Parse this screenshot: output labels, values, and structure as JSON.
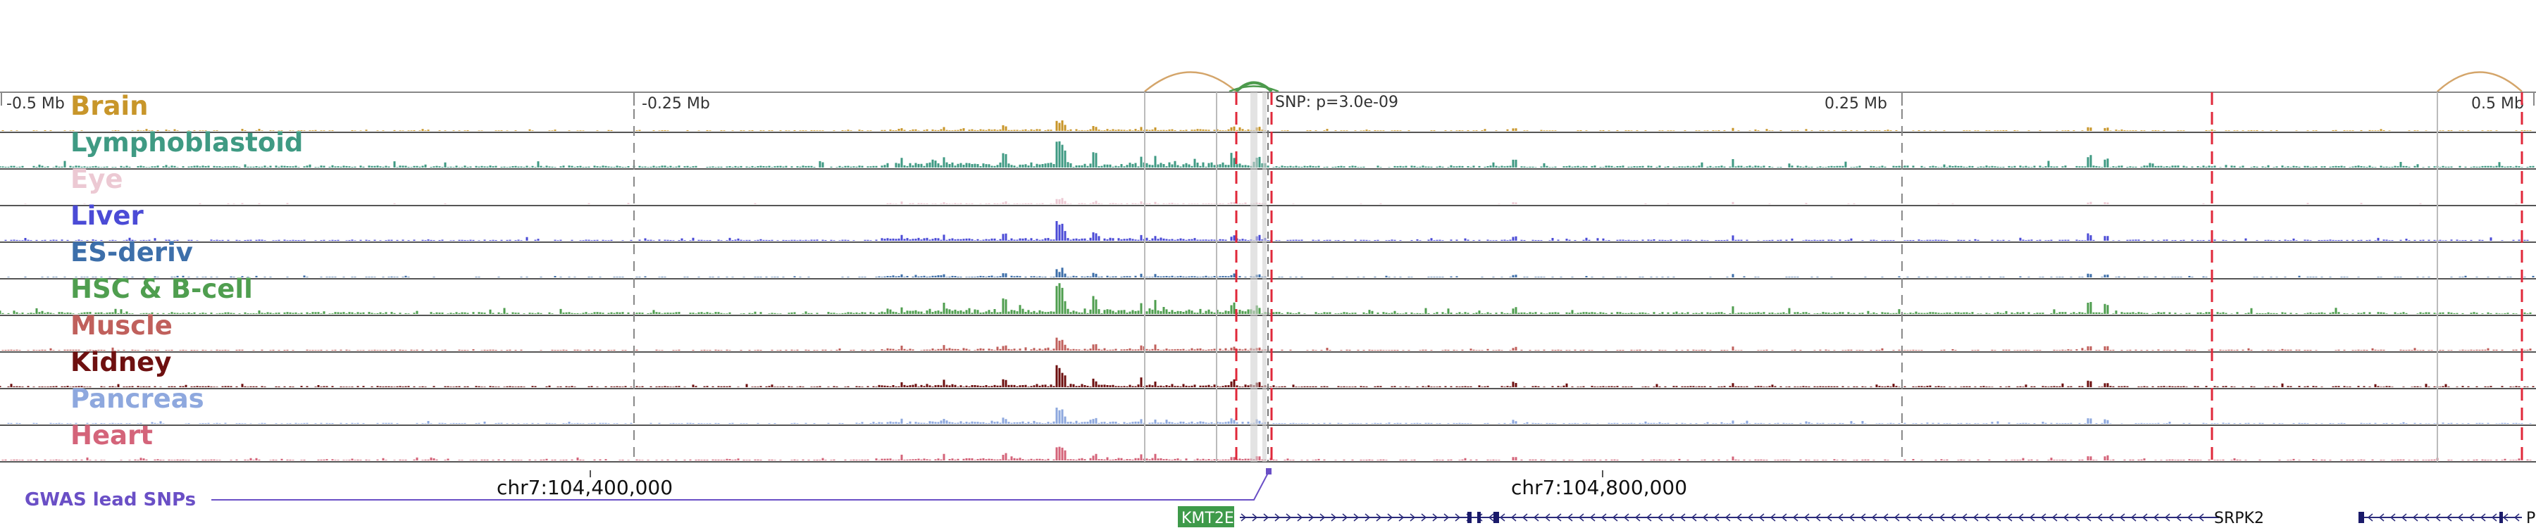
{
  "ruler": {
    "labels": [
      "-0.5 Mb",
      "-0.25 Mb",
      "0.25 Mb",
      "0.5 Mb"
    ]
  },
  "snp_label": "SNP: p=3.0e-09",
  "tracks": [
    {
      "name": "Brain",
      "color": "#c8962a"
    },
    {
      "name": "Lymphoblastoid",
      "color": "#3f9a83"
    },
    {
      "name": "Eye",
      "color": "#ecc9d3"
    },
    {
      "name": "Liver",
      "color": "#4b4bd6"
    },
    {
      "name": "ES-deriv",
      "color": "#3d6faa"
    },
    {
      "name": "HSC & B-cell",
      "color": "#4f9e4f"
    },
    {
      "name": "Muscle",
      "color": "#c0605c"
    },
    {
      "name": "Kidney",
      "color": "#6e1010"
    },
    {
      "name": "Pancreas",
      "color": "#8ea8de"
    },
    {
      "name": "Heart",
      "color": "#d4647a"
    }
  ],
  "coordinates": [
    "chr7:104,400,000",
    "chr7:104,800,000"
  ],
  "gwas_label": "GWAS lead SNPs",
  "genes": {
    "kmt2e": "KMT2E",
    "srpk2": "SRPK2",
    "right": "P"
  },
  "colors": {
    "gwas": "#6a4fc6",
    "loop": "#d4a56a",
    "loop_green": "#4c9a4c",
    "red_dash": "#e0283a",
    "gene_box": "#3e9a4a",
    "gene_line": "#2a2a7a"
  }
}
